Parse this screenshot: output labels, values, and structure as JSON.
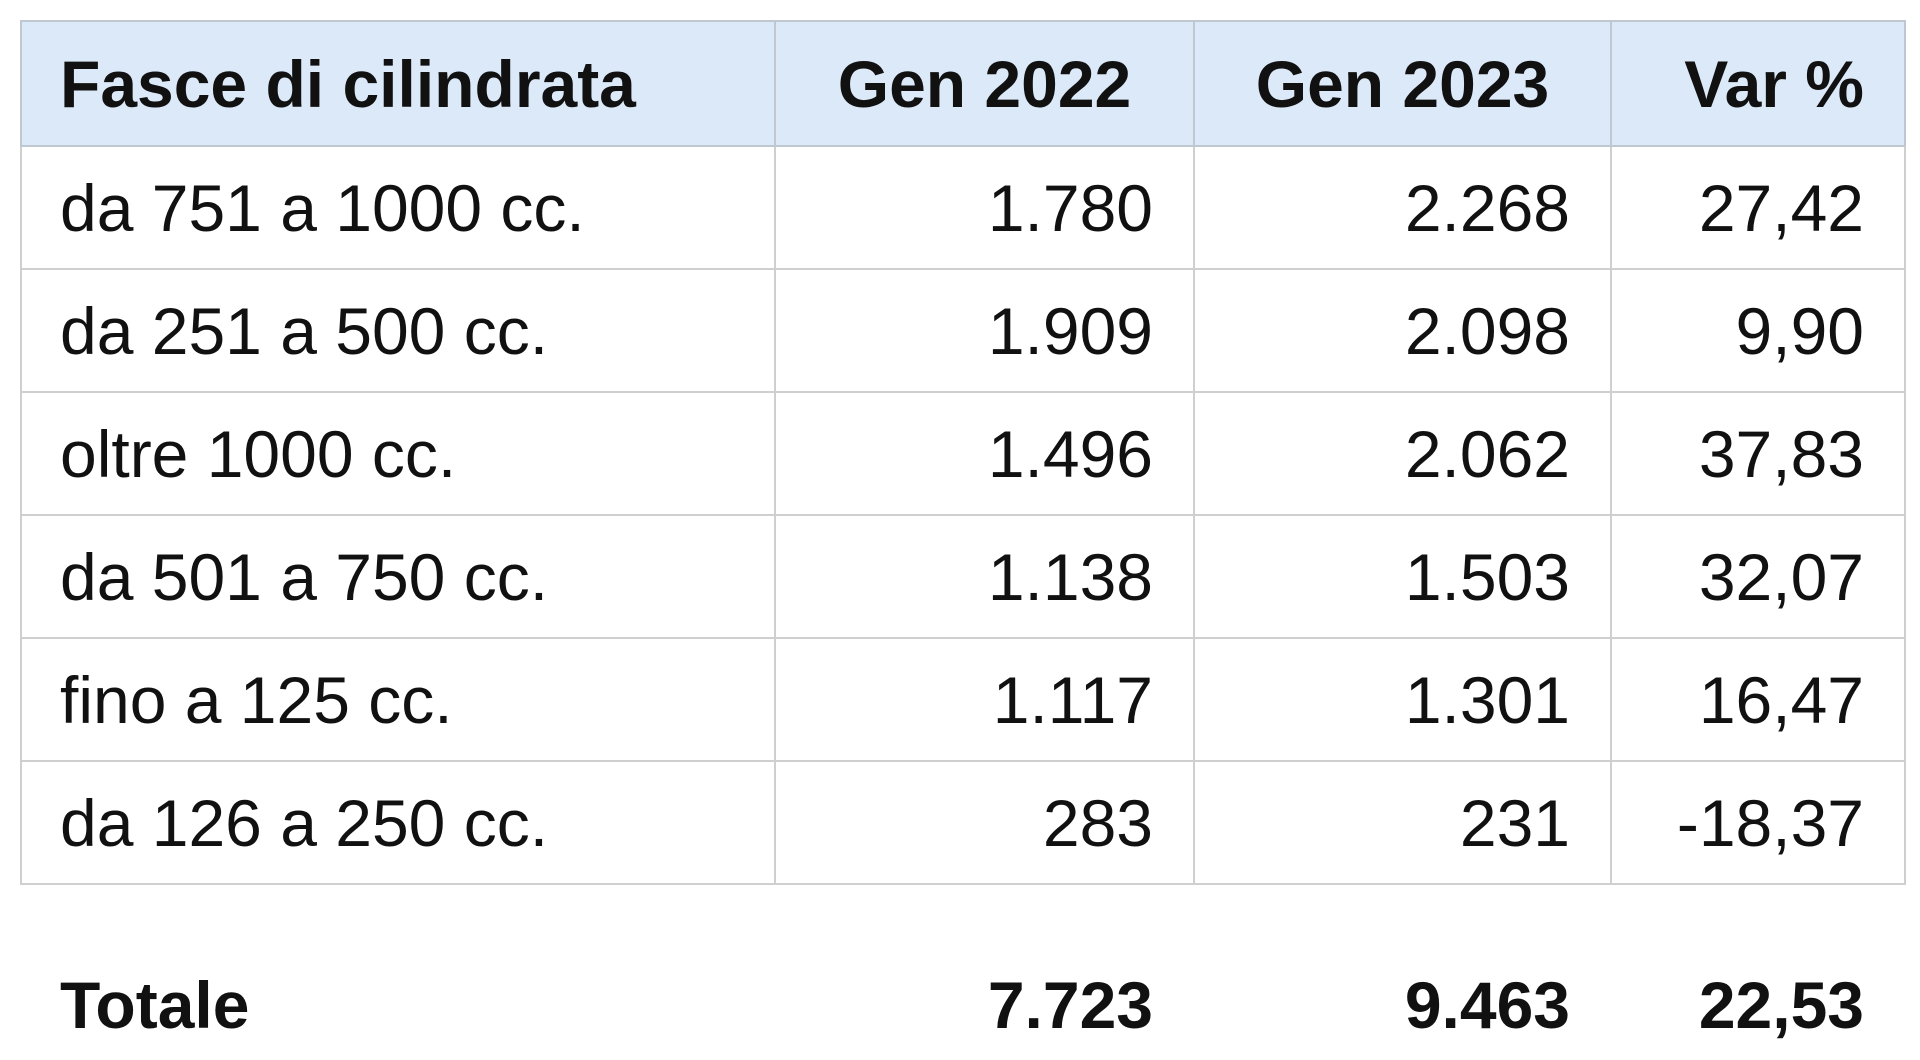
{
  "table": {
    "header": [
      "Fasce di cilindrata",
      "Gen 2022",
      "Gen 2023",
      "Var %"
    ],
    "rows": [
      [
        "da 751 a 1000 cc.",
        "1.780",
        "2.268",
        "27,42"
      ],
      [
        "da 251 a 500 cc.",
        "1.909",
        "2.098",
        "9,90"
      ],
      [
        "oltre 1000 cc.",
        "1.496",
        "2.062",
        "37,83"
      ],
      [
        "da 501 a 750 cc.",
        "1.138",
        "1.503",
        "32,07"
      ],
      [
        "fino a 125 cc.",
        "1.117",
        "1.301",
        "16,47"
      ],
      [
        "da 126 a 250 cc.",
        "283",
        "231",
        "-18,37"
      ]
    ],
    "total": [
      "Totale",
      "7.723",
      "9.463",
      "22,53"
    ]
  }
}
